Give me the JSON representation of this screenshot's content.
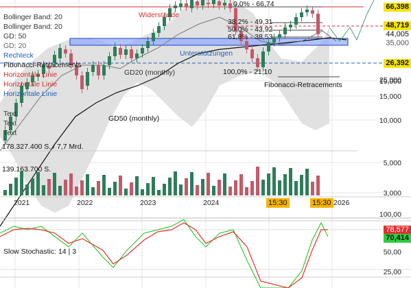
{
  "legend": {
    "boll1": "Bollinger Band: 20",
    "boll2": "Bollinger Band: 20",
    "gd50": "GD: 50",
    "gd20": "GD: 20",
    "rechteck": "Rechteck",
    "fibo": "Fibonacci-Retracements",
    "hline1": "Horizontale Linie",
    "hline2": "Horizontale Linie",
    "hline3": "Horizontale Linie",
    "text1": "Text",
    "text2": "Text",
    "text3": "Text"
  },
  "annotations": {
    "widerstaende": "Widerstände",
    "unterstuetzungen": "Unterstützungen",
    "gd20_label": "GD20 (monthly)",
    "gd50_label": "GD50 (monthly)",
    "fibo_label": "Fibonacci-Retracements",
    "fib_0": "0,0% - 66,74",
    "fib_382": "38,2% - 49,31",
    "fib_50": "50,0% - 43,92",
    "fib_618": "61,8% - 38,53",
    "fib_100": "100,0% - 21,10"
  },
  "volume": {
    "label1": "178.327.400 S. / 7,7 Mrd.",
    "label2": "139.163.700 S."
  },
  "price_tags": {
    "p1": "66,398",
    "p2": "48,719",
    "p3": "44,005",
    "p4": "35,000",
    "p5": "26,392"
  },
  "y_axis": [
    "25,000",
    "19,000",
    "15,000",
    "10,000",
    "5,000",
    "3,000"
  ],
  "x_axis": [
    "2021",
    "2022",
    "2023",
    "2024",
    "2026"
  ],
  "time_tags": [
    "15:30",
    "15:30"
  ],
  "stochastic": {
    "label": "Slow Stochastic: 14 | 3",
    "v1": "78,577",
    "v2": "70,414",
    "ticks": [
      "100,00",
      "75,00",
      "50,00",
      "25,00"
    ]
  },
  "colors": {
    "up": "#2e7d5b",
    "down": "#c25a6a",
    "band": "#d6d6d6",
    "rect": "#8ea9ff",
    "green_tag": "#2ecc40",
    "red_tag": "#e03030"
  }
}
